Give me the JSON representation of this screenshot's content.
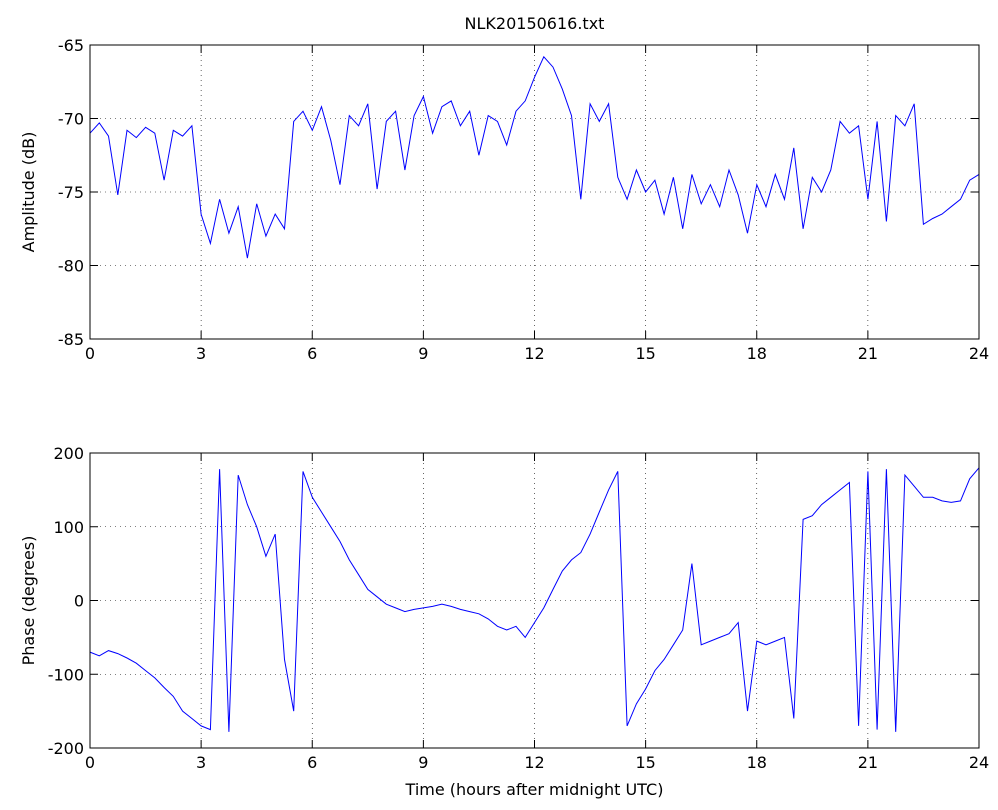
{
  "chart_data": [
    {
      "type": "line",
      "title": "NLK20150616.txt",
      "ylabel": "Amplitude (dB)",
      "color": "#0000ff",
      "grid": true,
      "xlim": [
        0,
        24
      ],
      "xticks": [
        0,
        3,
        6,
        9,
        12,
        15,
        18,
        21,
        24
      ],
      "ylim": [
        -85,
        -65
      ],
      "yticks": [
        -85,
        -80,
        -75,
        -70,
        -65
      ],
      "x": [
        0,
        0.25,
        0.5,
        0.75,
        1,
        1.25,
        1.5,
        1.75,
        2,
        2.25,
        2.5,
        2.75,
        3,
        3.25,
        3.5,
        3.75,
        4,
        4.25,
        4.5,
        4.75,
        5,
        5.25,
        5.5,
        5.75,
        6,
        6.25,
        6.5,
        6.75,
        7,
        7.25,
        7.5,
        7.75,
        8,
        8.25,
        8.5,
        8.75,
        9,
        9.25,
        9.5,
        9.75,
        10,
        10.25,
        10.5,
        10.75,
        11,
        11.25,
        11.5,
        11.75,
        12,
        12.25,
        12.5,
        12.75,
        13,
        13.25,
        13.5,
        13.75,
        14,
        14.25,
        14.5,
        14.75,
        15,
        15.25,
        15.5,
        15.75,
        16,
        16.25,
        16.5,
        16.75,
        17,
        17.25,
        17.5,
        17.75,
        18,
        18.25,
        18.5,
        18.75,
        19,
        19.25,
        19.5,
        19.75,
        20,
        20.25,
        20.5,
        20.75,
        21,
        21.25,
        21.5,
        21.75,
        22,
        22.25,
        22.5,
        22.75,
        23,
        23.25,
        23.5,
        23.75,
        24
      ],
      "values": [
        -71.0,
        -70.3,
        -71.2,
        -75.2,
        -70.8,
        -71.3,
        -70.6,
        -71.0,
        -74.2,
        -70.8,
        -71.2,
        -70.5,
        -76.5,
        -78.5,
        -75.5,
        -77.8,
        -76.0,
        -79.5,
        -75.8,
        -78.0,
        -76.5,
        -77.5,
        -70.2,
        -69.5,
        -70.8,
        -69.2,
        -71.5,
        -74.5,
        -69.8,
        -70.5,
        -69.0,
        -74.8,
        -70.2,
        -69.5,
        -73.5,
        -69.8,
        -68.5,
        -71.0,
        -69.2,
        -68.8,
        -70.5,
        -69.5,
        -72.5,
        -69.8,
        -70.2,
        -71.8,
        -69.5,
        -68.8,
        -67.2,
        -65.8,
        -66.5,
        -68.0,
        -69.8,
        -75.5,
        -69.0,
        -70.2,
        -69.0,
        -74.0,
        -75.5,
        -73.5,
        -75.0,
        -74.2,
        -76.5,
        -74.0,
        -77.5,
        -73.8,
        -75.8,
        -74.5,
        -76.0,
        -73.5,
        -75.2,
        -77.8,
        -74.5,
        -76.0,
        -73.8,
        -75.5,
        -72.0,
        -77.5,
        -74.0,
        -75.0,
        -73.5,
        -70.2,
        -71.0,
        -70.5,
        -75.5,
        -70.2,
        -77.0,
        -69.8,
        -70.5,
        -69.0,
        -77.2,
        -76.8,
        -76.5,
        -76.0,
        -75.5,
        -74.2,
        -73.8
      ]
    },
    {
      "type": "line",
      "ylabel": "Phase (degrees)",
      "xlabel": "Time (hours after midnight UTC)",
      "color": "#0000ff",
      "grid": true,
      "xlim": [
        0,
        24
      ],
      "xticks": [
        0,
        3,
        6,
        9,
        12,
        15,
        18,
        21,
        24
      ],
      "ylim": [
        -200,
        200
      ],
      "yticks": [
        -200,
        -100,
        0,
        100,
        200
      ],
      "x": [
        0,
        0.25,
        0.5,
        0.75,
        1,
        1.25,
        1.5,
        1.75,
        2,
        2.25,
        2.5,
        2.75,
        3,
        3.25,
        3.5,
        3.75,
        4,
        4.25,
        4.5,
        4.75,
        5,
        5.25,
        5.5,
        5.75,
        6,
        6.25,
        6.5,
        6.75,
        7,
        7.25,
        7.5,
        7.75,
        8,
        8.25,
        8.5,
        8.75,
        9,
        9.25,
        9.5,
        9.75,
        10,
        10.25,
        10.5,
        10.75,
        11,
        11.25,
        11.5,
        11.75,
        12,
        12.25,
        12.5,
        12.75,
        13,
        13.25,
        13.5,
        13.75,
        14,
        14.25,
        14.5,
        14.75,
        15,
        15.25,
        15.5,
        15.75,
        16,
        16.25,
        16.5,
        16.75,
        17,
        17.25,
        17.5,
        17.75,
        18,
        18.25,
        18.5,
        18.75,
        19,
        19.25,
        19.5,
        19.75,
        20,
        20.25,
        20.5,
        20.75,
        21,
        21.25,
        21.5,
        21.75,
        22,
        22.25,
        22.5,
        22.75,
        23,
        23.25,
        23.5,
        23.75,
        24
      ],
      "values": [
        -70,
        -75,
        -68,
        -72,
        -78,
        -85,
        -95,
        -105,
        -118,
        -130,
        -150,
        -160,
        -170,
        -175,
        178,
        -178,
        170,
        130,
        100,
        60,
        90,
        -80,
        -150,
        175,
        140,
        120,
        100,
        80,
        55,
        35,
        15,
        5,
        -5,
        -10,
        -15,
        -12,
        -10,
        -8,
        -5,
        -8,
        -12,
        -15,
        -18,
        -25,
        -35,
        -40,
        -35,
        -50,
        -30,
        -10,
        15,
        40,
        55,
        65,
        90,
        120,
        150,
        175,
        -170,
        -140,
        -120,
        -95,
        -80,
        -60,
        -40,
        50,
        -60,
        -55,
        -50,
        -45,
        -30,
        -150,
        -55,
        -60,
        -55,
        -50,
        -160,
        110,
        115,
        130,
        140,
        150,
        160,
        -170,
        175,
        -175,
        178,
        -178,
        170,
        155,
        140,
        140,
        135,
        133,
        135,
        165,
        180
      ]
    }
  ]
}
